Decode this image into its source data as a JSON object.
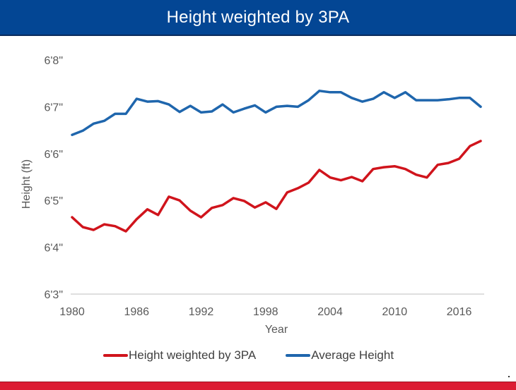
{
  "header": {
    "title": "Height weighted by 3PA"
  },
  "colors": {
    "header_bg": "#034694",
    "footer_bg": "#dc1c33",
    "series_red": "#d0141c",
    "series_blue": "#1f66ad",
    "axis": "#bfbfbf",
    "text": "#595959"
  },
  "chart_data": {
    "type": "line",
    "title": "Height weighted by 3PA",
    "xlabel": "Year",
    "ylabel": "Height (ft)",
    "x": [
      1980,
      1981,
      1982,
      1983,
      1984,
      1985,
      1986,
      1987,
      1988,
      1989,
      1990,
      1991,
      1992,
      1993,
      1994,
      1995,
      1996,
      1997,
      1998,
      1999,
      2000,
      2001,
      2002,
      2003,
      2004,
      2005,
      2006,
      2007,
      2008,
      2009,
      2010,
      2011,
      2012,
      2013,
      2014,
      2015,
      2016,
      2017,
      2018
    ],
    "xlim": [
      1980,
      2018
    ],
    "x_ticks": [
      1980,
      1986,
      1992,
      1998,
      2004,
      2010,
      2016
    ],
    "x_tick_labels": [
      "1980",
      "1986",
      "1992",
      "1998",
      "2004",
      "2010",
      "2016"
    ],
    "ylim": [
      75,
      80
    ],
    "y_unit": "inches",
    "y_ticks": [
      75,
      76,
      77,
      78,
      79,
      80
    ],
    "y_tick_labels": [
      "6'3\"",
      "6'4\"",
      "6'5\"",
      "6'6\"",
      "6'7\"",
      "6'8\""
    ],
    "grid": false,
    "legend_position": "bottom",
    "series": [
      {
        "name": "Height weighted by 3PA",
        "color": "#d0141c",
        "values": [
          76.64,
          76.43,
          76.37,
          76.49,
          76.45,
          76.34,
          76.6,
          76.81,
          76.69,
          77.08,
          77.0,
          76.78,
          76.64,
          76.84,
          76.9,
          77.05,
          76.99,
          76.85,
          76.96,
          76.82,
          77.17,
          77.26,
          77.38,
          77.65,
          77.49,
          77.43,
          77.5,
          77.41,
          77.67,
          77.71,
          77.73,
          77.67,
          77.55,
          77.49,
          77.76,
          77.8,
          77.89,
          78.16,
          78.27
        ]
      },
      {
        "name": "Average Height",
        "color": "#1f66ad",
        "values": [
          78.4,
          78.49,
          78.64,
          78.7,
          78.85,
          78.85,
          79.17,
          79.11,
          79.12,
          79.05,
          78.89,
          79.02,
          78.88,
          78.9,
          79.05,
          78.88,
          78.96,
          79.03,
          78.88,
          79.0,
          79.02,
          79.0,
          79.14,
          79.34,
          79.31,
          79.31,
          79.19,
          79.11,
          79.17,
          79.31,
          79.19,
          79.31,
          79.14,
          79.14,
          79.14,
          79.16,
          79.19,
          79.19,
          79.0
        ]
      }
    ]
  },
  "legend": {
    "items": [
      {
        "label": "Height weighted by 3PA",
        "color": "#d0141c"
      },
      {
        "label": "Average Height",
        "color": "#1f66ad"
      }
    ]
  }
}
